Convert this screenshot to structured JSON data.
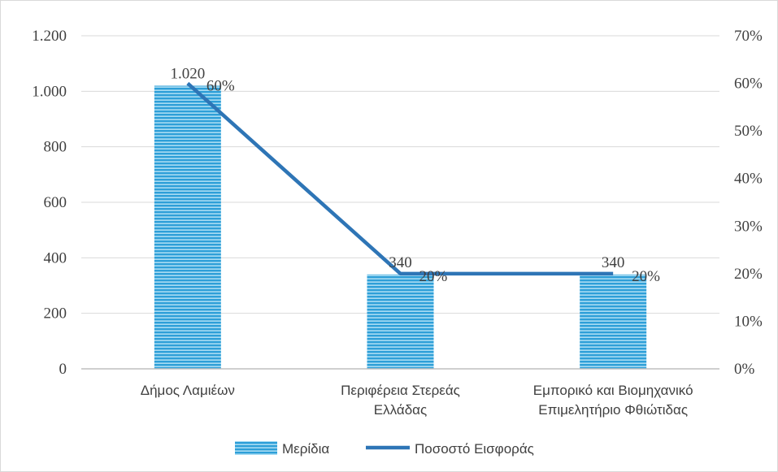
{
  "chart_data": {
    "type": "bar",
    "categories": [
      [
        "Δήμος Λαμιέων"
      ],
      [
        "Περιφέρεια Στερεάς",
        "Ελλάδας"
      ],
      [
        "Εμπορικό και Βιομηχανικό",
        "Επιμελητήριο Φθιώτιδας"
      ]
    ],
    "series": [
      {
        "name": "Μερίδια",
        "type": "bar",
        "axis": "left",
        "values": [
          1020,
          340,
          340
        ],
        "labels": [
          "1.020",
          "340",
          "340"
        ],
        "color": "#2e9fd8"
      },
      {
        "name": "Ποσοστό Εισφοράς",
        "type": "line",
        "axis": "right",
        "values": [
          0.6,
          0.2,
          0.2
        ],
        "labels": [
          "60%",
          "20%",
          "20%"
        ],
        "color": "#2e75b6"
      }
    ],
    "y_left": {
      "range": [
        0,
        1200
      ],
      "ticks": [
        0,
        200,
        400,
        600,
        800,
        1000,
        1200
      ],
      "tick_labels": [
        "0",
        "200",
        "400",
        "600",
        "800",
        "1.000",
        "1.200"
      ]
    },
    "y_right": {
      "range": [
        0,
        0.7
      ],
      "ticks": [
        0,
        0.1,
        0.2,
        0.3,
        0.4,
        0.5,
        0.6,
        0.7
      ],
      "tick_labels": [
        "0%",
        "10%",
        "20%",
        "30%",
        "40%",
        "50%",
        "60%",
        "70%"
      ]
    },
    "grid": true,
    "legend": "bottom"
  }
}
